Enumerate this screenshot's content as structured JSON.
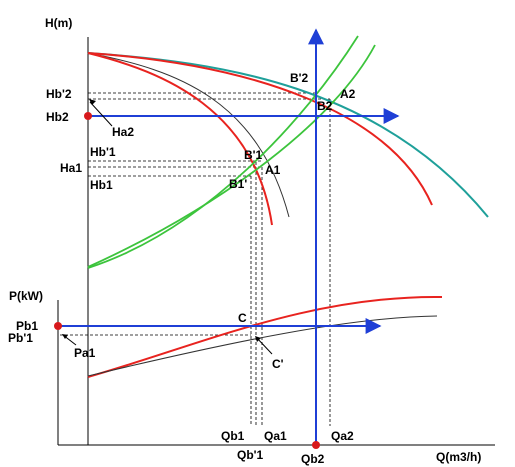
{
  "axes": {
    "head": "H(m)",
    "power": "P(kW)",
    "flow": "Q(m3/h)"
  },
  "head_labels": {
    "Hb2_prime": "Hb'2",
    "Hb2": "Hb2",
    "Ha2": "Ha2",
    "Hb1_prime": "Hb'1",
    "Ha1": "Ha1",
    "Hb1": "Hb1"
  },
  "points": {
    "B2_prime": "B'2",
    "A2": "A2",
    "B2": "B2",
    "B1_prime_upper": "B'1",
    "A1": "A1",
    "B1_prime_lower": "B1'",
    "C": "C",
    "C_prime": "C'"
  },
  "power_labels": {
    "Pb1": "Pb1",
    "Pb1_prime": "Pb'1",
    "Pa1": "Pa1"
  },
  "flow_labels": {
    "Qb1": "Qb1",
    "Qb1_prime": "Qb'1",
    "Qa1": "Qa1",
    "Qb2": "Qb2",
    "Qa2": "Qa2"
  },
  "colors": {
    "pump_curve": "#e8231f",
    "system_curve": "#3cc43c",
    "teal_curve": "#1fa09a",
    "reference_curve": "#333333",
    "operating_line": "#1f3fd6",
    "marker": "#d7191c"
  }
}
